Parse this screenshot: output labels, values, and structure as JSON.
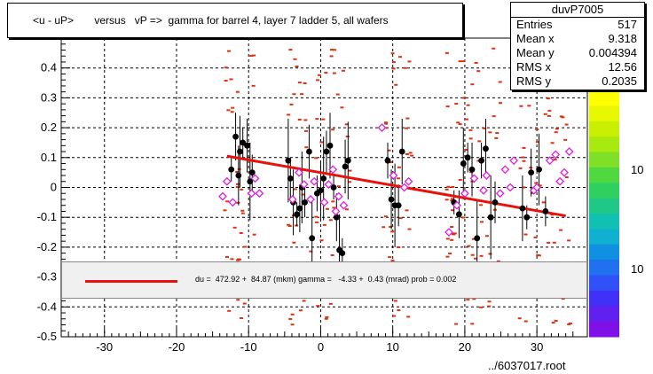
{
  "chart_data": {
    "type": "scatter",
    "title": "<u - uP>       versus   vP =>  gamma for barrel 4, layer 7 ladder 5, all wafers",
    "xlim": [
      -36,
      37
    ],
    "ylim": [
      -0.5,
      0.5
    ],
    "x_ticks": [
      -30,
      -20,
      -10,
      0,
      10,
      20,
      30
    ],
    "y_ticks": [
      -0.5,
      -0.4,
      -0.3,
      -0.2,
      -0.1,
      0,
      0.1,
      0.2,
      0.3,
      0.4
    ],
    "y_tick_labels": [
      "-0.5",
      "-0.4",
      "-0.3",
      "-0.2",
      "-0.1",
      "0",
      "0.1",
      "0.2",
      "0.3",
      "0.4"
    ],
    "x_tick_labels": [
      "-30",
      "-20",
      "-10",
      "0",
      "10",
      "20",
      "30"
    ],
    "grid": true,
    "fit_line": {
      "x": [
        -13,
        34
      ],
      "y": [
        0.105,
        -0.095
      ]
    },
    "series": [
      {
        "marker": "filled-circle",
        "points": [
          [
            -12.4,
            0.06
          ],
          [
            -11.8,
            0.17
          ],
          [
            -11.2,
            0.12
          ],
          [
            -10.8,
            0.15
          ],
          [
            -10.2,
            0.14
          ],
          [
            -9.8,
            0.02
          ],
          [
            -9.5,
            0.05
          ],
          [
            -11.4,
            0.04
          ],
          [
            -4.5,
            0.09
          ],
          [
            -4.2,
            0.03
          ],
          [
            -3.8,
            -0.05
          ],
          [
            -3.3,
            -0.09
          ],
          [
            -2.9,
            -0.07
          ],
          [
            -2.6,
            0.0
          ],
          [
            -2.2,
            -0.05
          ],
          [
            -1.6,
            0.12
          ],
          [
            -1.2,
            -0.17
          ],
          [
            -0.5,
            -0.02
          ],
          [
            0.0,
            -0.01
          ],
          [
            0.4,
            0.03
          ],
          [
            0.8,
            0.12
          ],
          [
            1.3,
            0.14
          ],
          [
            1.8,
            0.0
          ],
          [
            2.2,
            -0.1
          ],
          [
            2.6,
            -0.21
          ],
          [
            3.0,
            -0.22
          ],
          [
            3.4,
            0.07
          ],
          [
            3.8,
            0.09
          ],
          [
            9.3,
            0.09
          ],
          [
            9.8,
            -0.04
          ],
          [
            10.3,
            -0.06
          ],
          [
            10.8,
            -0.06
          ],
          [
            11.3,
            0.12
          ],
          [
            18.5,
            -0.05
          ],
          [
            19.2,
            -0.09
          ],
          [
            19.8,
            0.08
          ],
          [
            20.4,
            0.1
          ],
          [
            21.0,
            0.06
          ],
          [
            21.7,
            -0.17
          ],
          [
            22.3,
            0.09
          ],
          [
            22.9,
            0.13
          ],
          [
            23.6,
            -0.1
          ],
          [
            24.2,
            -0.05
          ],
          [
            28.0,
            -0.07
          ],
          [
            28.6,
            -0.1
          ],
          [
            29.2,
            0.05
          ],
          [
            30.3,
            0.06
          ],
          [
            31.2,
            -0.08
          ]
        ]
      },
      {
        "marker": "open-diamond",
        "points": [
          [
            -13.6,
            -0.03
          ],
          [
            -13.0,
            0.02
          ],
          [
            -12.2,
            -0.05
          ],
          [
            -9.6,
            -0.02
          ],
          [
            -8.5,
            -0.02
          ],
          [
            -9.1,
            0.03
          ],
          [
            -3.9,
            -0.04
          ],
          [
            -3.0,
            0.05
          ],
          [
            -2.3,
            0.01
          ],
          [
            -1.4,
            -0.04
          ],
          [
            -0.9,
            0.02
          ],
          [
            0.5,
            -0.05
          ],
          [
            1.1,
            0.01
          ],
          [
            1.7,
            0.06
          ],
          [
            2.1,
            -0.08
          ],
          [
            2.5,
            -0.03
          ],
          [
            3.2,
            -0.06
          ],
          [
            8.5,
            0.2
          ],
          [
            10.1,
            0.04
          ],
          [
            11.6,
            0.0
          ],
          [
            12.2,
            0.02
          ],
          [
            17.8,
            -0.15
          ],
          [
            18.9,
            -0.06
          ],
          [
            20.0,
            -0.02
          ],
          [
            21.3,
            0.03
          ],
          [
            22.6,
            -0.01
          ],
          [
            23.0,
            0.04
          ],
          [
            24.9,
            -0.02
          ],
          [
            25.6,
            0.06
          ],
          [
            26.3,
            0.0
          ],
          [
            26.8,
            0.09
          ],
          [
            29.6,
            -0.01
          ],
          [
            30.0,
            0.0
          ],
          [
            31.8,
            0.09
          ],
          [
            32.6,
            0.11
          ],
          [
            33.2,
            0.02
          ],
          [
            33.8,
            0.05
          ],
          [
            34.5,
            0.12
          ]
        ]
      }
    ]
  },
  "stats": {
    "name": "duvP7005",
    "rows": [
      {
        "label": "Entries",
        "value": "517"
      },
      {
        "label": "Mean x",
        "value": "9.318"
      },
      {
        "label": "Mean y",
        "value": "0.004394"
      },
      {
        "label": "RMS x",
        "value": "12.56"
      },
      {
        "label": "RMS y",
        "value": "0.2035"
      }
    ]
  },
  "fit_text": "du =  472.92 +  84.87 (mkm) gamma =   -4.33 +  0.43 (mrad) prob = 0.002",
  "filename": "../6037017.root",
  "z_labels": [
    "10",
    "10"
  ],
  "colors": {
    "fit": "#e8120d",
    "dash": "#e03010",
    "diamond": "#e020e0"
  }
}
